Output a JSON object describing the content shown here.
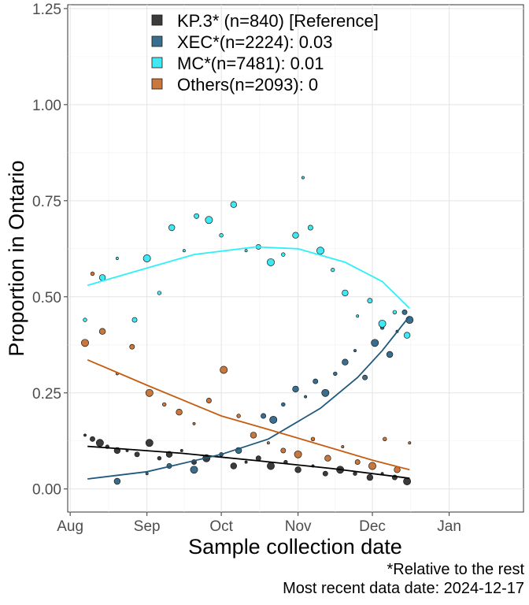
{
  "chart_data": {
    "type": "scatter",
    "xlabel": "Sample collection date",
    "ylabel": "Proportion in Ontario",
    "x_ticks": [
      "Aug",
      "Sep",
      "Oct",
      "Nov",
      "Dec",
      "Jan"
    ],
    "y_ticks": [
      "0.00",
      "0.25",
      "0.50",
      "0.75",
      "1.00",
      "1.25"
    ],
    "xlim": [
      "2024-07-31",
      "2025-01-31"
    ],
    "ylim": [
      -0.06,
      1.26
    ],
    "grid": true,
    "legend_position": "top",
    "series": [
      {
        "name": "KP.3* (n=840)  [Reference]",
        "color": "#3b3b3b",
        "fit": [
          [
            "2024-08-08",
            0.111
          ],
          [
            "2024-09-15",
            0.093
          ],
          [
            "2024-10-15",
            0.074
          ],
          [
            "2024-11-15",
            0.053
          ],
          [
            "2024-12-16",
            0.028
          ]
        ],
        "points": [
          [
            "2024-08-07",
            0.14
          ],
          [
            "2024-08-10",
            0.13
          ],
          [
            "2024-08-13",
            0.12
          ],
          [
            "2024-08-16",
            0.11
          ],
          [
            "2024-08-20",
            0.1
          ],
          [
            "2024-08-24",
            0.1
          ],
          [
            "2024-08-28",
            0.09
          ],
          [
            "2024-09-02",
            0.12
          ],
          [
            "2024-09-06",
            0.08
          ],
          [
            "2024-09-10",
            0.09
          ],
          [
            "2024-09-15",
            0.1
          ],
          [
            "2024-09-20",
            0.07
          ],
          [
            "2024-09-25",
            0.08
          ],
          [
            "2024-10-01",
            0.09
          ],
          [
            "2024-10-06",
            0.06
          ],
          [
            "2024-10-11",
            0.07
          ],
          [
            "2024-10-16",
            0.08
          ],
          [
            "2024-10-21",
            0.06
          ],
          [
            "2024-10-27",
            0.07
          ],
          [
            "2024-11-01",
            0.05
          ],
          [
            "2024-11-07",
            0.06
          ],
          [
            "2024-11-12",
            0.04
          ],
          [
            "2024-11-18",
            0.05
          ],
          [
            "2024-11-24",
            0.04
          ],
          [
            "2024-11-30",
            0.03
          ],
          [
            "2024-12-05",
            0.04
          ],
          [
            "2024-12-10",
            0.03
          ],
          [
            "2024-12-15",
            0.02
          ]
        ]
      },
      {
        "name": "XEC*(n=2224): 0.03",
        "color": "#3a6e8f",
        "fit": [
          [
            "2024-08-08",
            0.026
          ],
          [
            "2024-09-01",
            0.045
          ],
          [
            "2024-10-01",
            0.09
          ],
          [
            "2024-10-20",
            0.13
          ],
          [
            "2024-11-10",
            0.21
          ],
          [
            "2024-11-25",
            0.29
          ],
          [
            "2024-12-05",
            0.36
          ],
          [
            "2024-12-16",
            0.45
          ]
        ],
        "points": [
          [
            "2024-08-20",
            0.02
          ],
          [
            "2024-09-01",
            0.04
          ],
          [
            "2024-09-10",
            0.06
          ],
          [
            "2024-09-20",
            0.05
          ],
          [
            "2024-10-01",
            0.09
          ],
          [
            "2024-10-08",
            0.1
          ],
          [
            "2024-10-14",
            0.14
          ],
          [
            "2024-10-18",
            0.19
          ],
          [
            "2024-10-22",
            0.18
          ],
          [
            "2024-10-26",
            0.22
          ],
          [
            "2024-10-31",
            0.26
          ],
          [
            "2024-11-04",
            0.24
          ],
          [
            "2024-11-08",
            0.28
          ],
          [
            "2024-11-12",
            0.25
          ],
          [
            "2024-11-16",
            0.3
          ],
          [
            "2024-11-20",
            0.33
          ],
          [
            "2024-11-24",
            0.36
          ],
          [
            "2024-11-28",
            0.29
          ],
          [
            "2024-12-02",
            0.38
          ],
          [
            "2024-12-05",
            0.42
          ],
          [
            "2024-12-08",
            0.35
          ],
          [
            "2024-12-11",
            0.41
          ],
          [
            "2024-12-14",
            0.46
          ],
          [
            "2024-12-16",
            0.44
          ]
        ]
      },
      {
        "name": "MC*(n=7481): 0.01",
        "color": "#3fe8f2",
        "fit": [
          [
            "2024-08-08",
            0.53
          ],
          [
            "2024-09-01",
            0.575
          ],
          [
            "2024-09-20",
            0.61
          ],
          [
            "2024-10-15",
            0.63
          ],
          [
            "2024-11-01",
            0.625
          ],
          [
            "2024-11-20",
            0.59
          ],
          [
            "2024-12-05",
            0.54
          ],
          [
            "2024-12-16",
            0.47
          ]
        ],
        "points": [
          [
            "2024-08-07",
            0.44
          ],
          [
            "2024-08-14",
            0.55
          ],
          [
            "2024-08-20",
            0.6
          ],
          [
            "2024-08-27",
            0.44
          ],
          [
            "2024-09-01",
            0.6
          ],
          [
            "2024-09-06",
            0.51
          ],
          [
            "2024-09-11",
            0.68
          ],
          [
            "2024-09-16",
            0.62
          ],
          [
            "2024-09-21",
            0.71
          ],
          [
            "2024-09-26",
            0.7
          ],
          [
            "2024-10-01",
            0.66
          ],
          [
            "2024-10-06",
            0.74
          ],
          [
            "2024-10-11",
            0.62
          ],
          [
            "2024-10-16",
            0.63
          ],
          [
            "2024-10-21",
            0.59
          ],
          [
            "2024-10-26",
            0.61
          ],
          [
            "2024-10-31",
            0.66
          ],
          [
            "2024-11-03",
            0.81
          ],
          [
            "2024-11-06",
            0.68
          ],
          [
            "2024-11-10",
            0.62
          ],
          [
            "2024-11-15",
            0.57
          ],
          [
            "2024-11-20",
            0.51
          ],
          [
            "2024-11-25",
            0.45
          ],
          [
            "2024-11-30",
            0.49
          ],
          [
            "2024-12-05",
            0.43
          ],
          [
            "2024-12-10",
            0.46
          ],
          [
            "2024-12-15",
            0.4
          ]
        ]
      },
      {
        "name": "Others(n=2093): 0",
        "color": "#c9773c",
        "fit": [
          [
            "2024-08-08",
            0.336
          ],
          [
            "2024-09-01",
            0.27
          ],
          [
            "2024-10-01",
            0.19
          ],
          [
            "2024-10-20",
            0.155
          ],
          [
            "2024-11-10",
            0.115
          ],
          [
            "2024-12-01",
            0.075
          ],
          [
            "2024-12-16",
            0.05
          ]
        ],
        "points": [
          [
            "2024-08-07",
            0.38
          ],
          [
            "2024-08-10",
            0.56
          ],
          [
            "2024-08-14",
            0.41
          ],
          [
            "2024-08-20",
            0.3
          ],
          [
            "2024-08-26",
            0.37
          ],
          [
            "2024-09-02",
            0.25
          ],
          [
            "2024-09-08",
            0.22
          ],
          [
            "2024-09-14",
            0.2
          ],
          [
            "2024-09-20",
            0.17
          ],
          [
            "2024-09-26",
            0.23
          ],
          [
            "2024-10-02",
            0.31
          ],
          [
            "2024-10-08",
            0.19
          ],
          [
            "2024-10-14",
            0.14
          ],
          [
            "2024-10-20",
            0.12
          ],
          [
            "2024-10-26",
            0.1
          ],
          [
            "2024-11-01",
            0.09
          ],
          [
            "2024-11-07",
            0.13
          ],
          [
            "2024-11-13",
            0.08
          ],
          [
            "2024-11-19",
            0.11
          ],
          [
            "2024-11-25",
            0.07
          ],
          [
            "2024-12-01",
            0.06
          ],
          [
            "2024-12-06",
            0.13
          ],
          [
            "2024-12-11",
            0.05
          ],
          [
            "2024-12-16",
            0.12
          ]
        ]
      }
    ]
  },
  "footnote": {
    "line1": "*Relative to the rest",
    "line2": "Most recent data date: 2024-12-17"
  }
}
